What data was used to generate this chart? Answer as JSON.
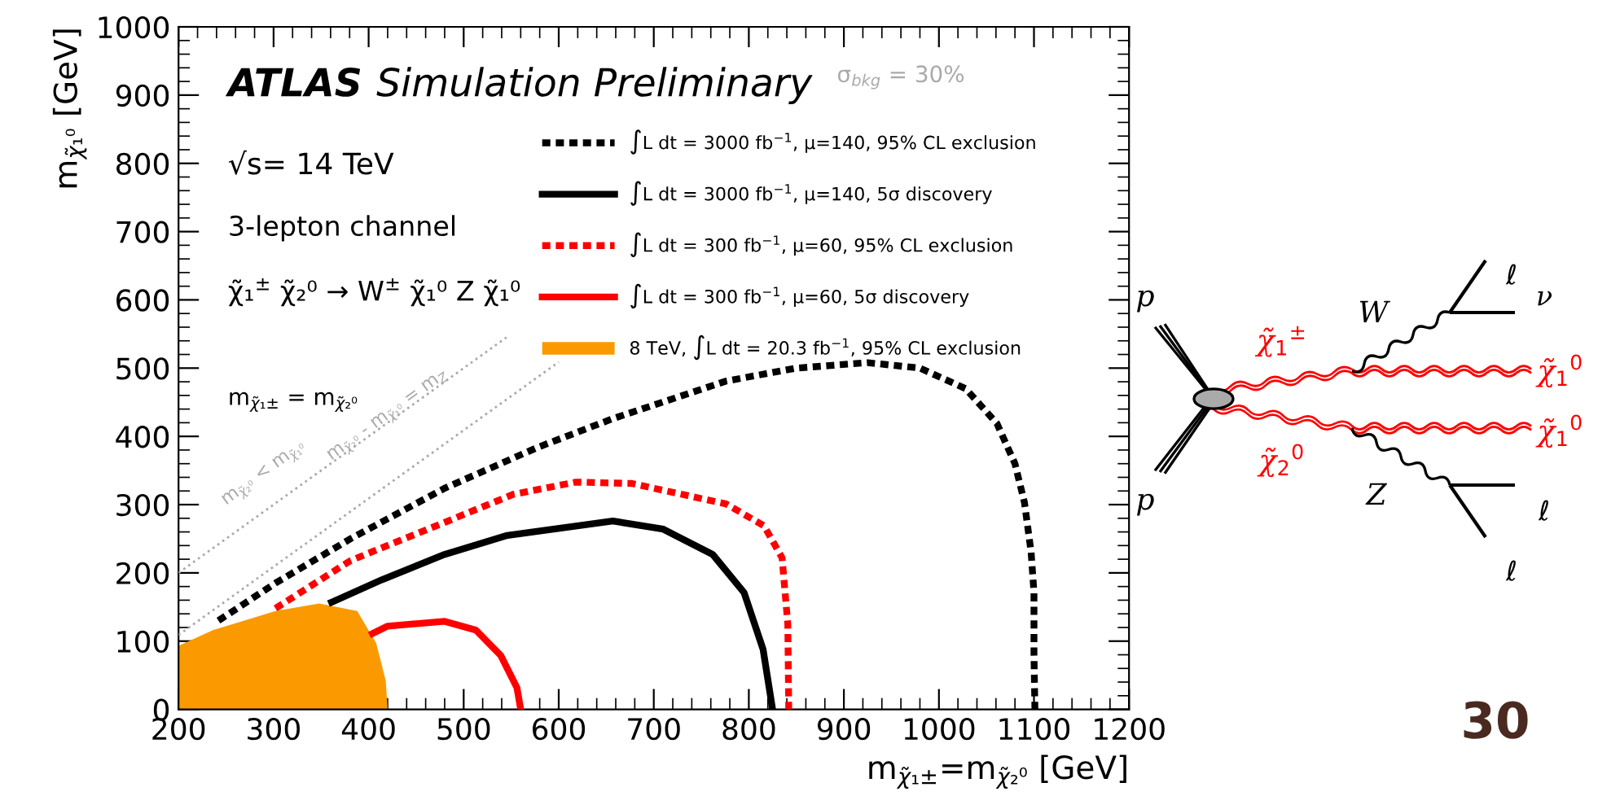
{
  "chart_data": {
    "type": "line",
    "title": "ATLAS",
    "subtitle": "Simulation Preliminary",
    "xlabel": "m$_{χ̃₁±}$=m$_{χ̃₂⁰}$ [GeV]",
    "ylabel": "m$_{χ̃₁⁰}$ [GeV]",
    "series": [
      {
        "name": "8 TeV, ∫L dt = 20.3 fb$^{−1}$, 95% CL exclusion",
        "type": "area",
        "color": "#fa9a00",
        "x": [
          200,
          236,
          302,
          348,
          388,
          408,
          418,
          420
        ],
        "values": [
          93,
          116,
          144,
          155,
          144,
          97,
          42,
          0
        ]
      },
      {
        "name": "∫L dt = 3000 fb$^{−1}$, μ=140, 95% CL exclusion",
        "line_style": "dashed",
        "color": "#000000",
        "x": [
          242,
          302,
          381,
          480,
          578,
          657,
          776,
          850,
          925,
          980,
          1028,
          1061,
          1080,
          1090,
          1097,
          1100,
          1100,
          1101
        ],
        "values": [
          130,
          185,
          250,
          324,
          384,
          426,
          481,
          500,
          508,
          500,
          470,
          419,
          360,
          303,
          230,
          171,
          80,
          0
        ]
      },
      {
        "name": "∫L dt = 3000 fb$^{−1}$, μ=140, 5σ discovery",
        "line_style": "solid",
        "color": "#000000",
        "x": [
          361,
          414,
          480,
          546,
          657,
          710,
          762,
          795,
          815,
          825
        ],
        "values": [
          157,
          190,
          227,
          255,
          276,
          264,
          227,
          171,
          88,
          0
        ]
      },
      {
        "name": "∫L dt = 300 fb$^{−1}$, μ=60, 95% CL exclusion",
        "line_style": "dashed",
        "color": "#ff0000",
        "x": [
          302,
          381,
          480,
          552,
          618,
          677,
          776,
          816,
          835,
          841,
          842
        ],
        "values": [
          148,
          218,
          274,
          315,
          333,
          331,
          301,
          269,
          222,
          125,
          0
        ]
      },
      {
        "name": "∫L dt = 300 fb$^{−1}$, μ=60, 5σ discovery",
        "line_style": "solid",
        "color": "#ff0000",
        "x": [
          404,
          420,
          480,
          513,
          539,
          556,
          560
        ],
        "values": [
          111,
          122,
          129,
          116,
          79,
          32,
          0
        ]
      },
      {
        "line_style": "dotted",
        "color": "#aaaaaa",
        "x": [
          200,
          545
        ],
        "values": [
          200,
          545
        ]
      },
      {
        "line_style": "dotted",
        "color": "#aaaaaa",
        "x": [
          200,
          600
        ],
        "values": [
          109,
          509
        ]
      }
    ],
    "annotations": [
      "σ$_{bkg}$ = 30%",
      "√s= 14 TeV",
      "3-lepton channel",
      "χ̃₁$^{±}$ χ̃₂⁰ → W$^{±}$ χ̃₁⁰ Z χ̃₁⁰",
      "m$_{χ̃₁±}$ = m$_{χ̃₂⁰}$",
      "m$_{χ̃₂⁰}$ < m$_{χ̃₁⁰}$",
      "m$_{χ̃₂⁰}$ - m$_{χ̃₁⁰}$ = m$_{Z}$",
      "p",
      "p",
      "W",
      "Z",
      "ℓ",
      "ν",
      "ℓ",
      "ℓ",
      "χ̃$_{1}$$^{±}$",
      "χ̃$_{2}$$^{0}$",
      "χ̃$_{1}$$^{0}$",
      "χ̃$_{1}$$^{0}$",
      "30"
    ],
    "xlim": [
      200,
      1200
    ],
    "xticks": [
      200,
      300,
      400,
      500,
      600,
      700,
      800,
      900,
      1000,
      1100,
      1200
    ],
    "ylim": [
      0,
      1000
    ],
    "yticks": [
      0,
      100,
      200,
      300,
      400,
      500,
      600,
      700,
      800,
      900,
      1000
    ],
    "grid": false,
    "legend": "top right",
    "marker": "none"
  }
}
